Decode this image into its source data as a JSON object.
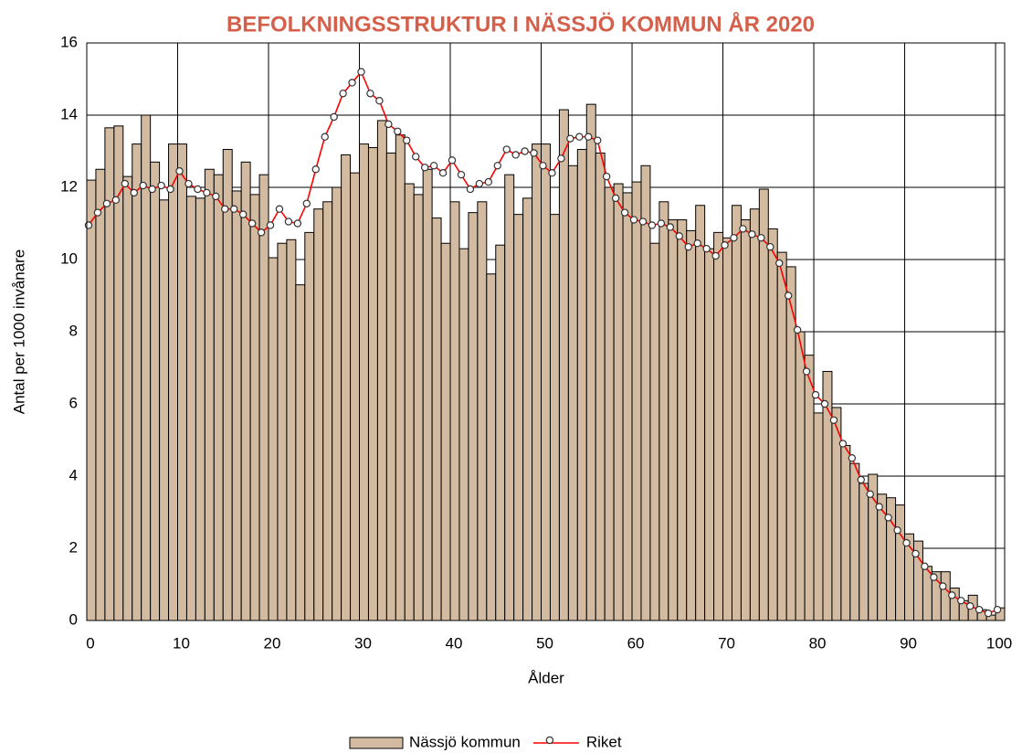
{
  "chart_data": {
    "type": "bar-line",
    "title": "BEFOLKNINGSSTRUKTUR I NÄSSJÖ KOMMUN ÅR 2020",
    "x_label": "Ålder",
    "y_label": "Antal per 1000 invånare",
    "x": [
      0,
      1,
      2,
      3,
      4,
      5,
      6,
      7,
      8,
      9,
      10,
      11,
      12,
      13,
      14,
      15,
      16,
      17,
      18,
      19,
      20,
      21,
      22,
      23,
      24,
      25,
      26,
      27,
      28,
      29,
      30,
      31,
      32,
      33,
      34,
      35,
      36,
      37,
      38,
      39,
      40,
      41,
      42,
      43,
      44,
      45,
      46,
      47,
      48,
      49,
      50,
      51,
      52,
      53,
      54,
      55,
      56,
      57,
      58,
      59,
      60,
      61,
      62,
      63,
      64,
      65,
      66,
      67,
      68,
      69,
      70,
      71,
      72,
      73,
      74,
      75,
      76,
      77,
      78,
      79,
      80,
      81,
      82,
      83,
      84,
      85,
      86,
      87,
      88,
      89,
      90,
      91,
      92,
      93,
      94,
      95,
      96,
      97,
      98,
      99,
      100
    ],
    "xlim": [
      0,
      101
    ],
    "xticks": [
      0,
      10,
      20,
      30,
      40,
      50,
      60,
      70,
      80,
      90,
      100
    ],
    "ylim": [
      0,
      16
    ],
    "yticks": [
      0,
      2,
      4,
      6,
      8,
      10,
      12,
      14,
      16
    ],
    "grid": true,
    "legend": "bottom",
    "series": [
      {
        "name": "Nässjö kommun",
        "type": "bar",
        "color": "#d2bba1",
        "values": [
          12.2,
          12.5,
          13.65,
          13.7,
          12.3,
          13.2,
          14.0,
          12.7,
          11.65,
          13.2,
          13.2,
          11.75,
          11.7,
          12.5,
          12.35,
          13.05,
          11.9,
          12.7,
          11.8,
          12.35,
          10.05,
          10.45,
          10.55,
          9.3,
          10.75,
          11.4,
          11.6,
          12.0,
          12.9,
          12.4,
          13.2,
          13.1,
          13.85,
          12.95,
          13.45,
          12.1,
          11.8,
          12.5,
          11.15,
          10.45,
          11.6,
          10.3,
          11.3,
          11.6,
          9.6,
          10.4,
          12.35,
          11.25,
          11.7,
          13.2,
          13.2,
          11.25,
          14.15,
          12.6,
          13.05,
          14.3,
          12.95,
          12.0,
          12.1,
          11.85,
          12.15,
          12.6,
          10.45,
          11.6,
          11.1,
          11.1,
          10.8,
          11.5,
          10.3,
          10.75,
          10.6,
          11.5,
          11.1,
          11.4,
          11.95,
          10.85,
          10.2,
          9.8,
          8.0,
          7.35,
          5.75,
          6.9,
          5.9,
          4.85,
          4.35,
          3.8,
          4.05,
          3.5,
          3.4,
          3.2,
          2.4,
          2.2,
          1.5,
          1.35,
          1.35,
          0.9,
          0.55,
          0.7,
          0.3,
          0.15,
          0.35
        ]
      },
      {
        "name": "Riket",
        "type": "line",
        "color": "#ff0000",
        "values": [
          10.95,
          11.3,
          11.55,
          11.65,
          12.1,
          11.85,
          12.05,
          11.95,
          12.05,
          11.95,
          12.45,
          12.1,
          11.95,
          11.85,
          11.75,
          11.4,
          11.4,
          11.25,
          11.0,
          10.75,
          10.95,
          11.4,
          11.05,
          11.0,
          11.55,
          12.5,
          13.4,
          13.95,
          14.6,
          14.9,
          15.2,
          14.6,
          14.4,
          13.75,
          13.55,
          13.3,
          12.85,
          12.55,
          12.6,
          12.4,
          12.75,
          12.35,
          11.95,
          12.1,
          12.15,
          12.6,
          13.05,
          12.9,
          13.0,
          12.95,
          12.6,
          12.4,
          12.8,
          13.35,
          13.4,
          13.4,
          13.3,
          12.3,
          11.7,
          11.3,
          11.1,
          11.05,
          10.95,
          11.0,
          10.9,
          10.65,
          10.35,
          10.45,
          10.3,
          10.1,
          10.4,
          10.6,
          10.85,
          10.7,
          10.6,
          10.35,
          9.9,
          9.0,
          8.05,
          6.9,
          6.25,
          6.0,
          5.55,
          4.9,
          4.5,
          3.9,
          3.5,
          3.15,
          2.85,
          2.5,
          2.15,
          1.85,
          1.5,
          1.2,
          0.95,
          0.7,
          0.55,
          0.4,
          0.3,
          0.2,
          0.3
        ]
      }
    ]
  }
}
